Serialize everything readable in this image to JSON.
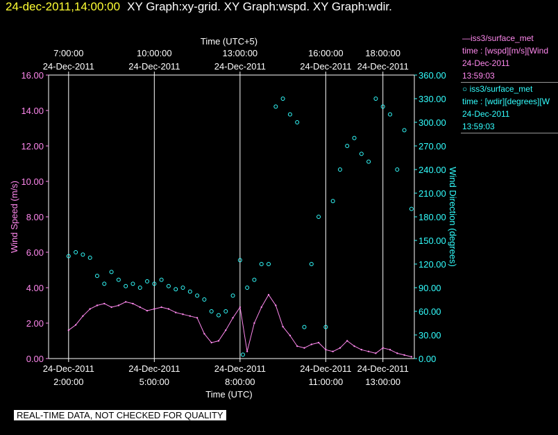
{
  "header": {
    "date": "24-dec-2011,14:00:00",
    "title": "XY Graph:xy-grid.  XY Graph:wspd.  XY Graph:wdir."
  },
  "legend": {
    "wspd": {
      "name": "—iss3/surface_met",
      "line2": "time : [wspd][m/s][Wind",
      "date": "24-Dec-2011",
      "time": "13:59:03"
    },
    "wdir": {
      "name": "○ iss3/surface_met",
      "line2": "time : [wdir][degrees][W",
      "date": "24-Dec-2011",
      "time": "13:59:03"
    }
  },
  "disclaimer": "REAL-TIME DATA, NOT CHECKED FOR QUALITY",
  "colors": {
    "wspd": "#ff88ee",
    "wdir": "#33ffff",
    "axis": "#ffffff"
  },
  "chart_data": {
    "type": "line",
    "xlabel_bottom": "Time (UTC)",
    "xlabel_top": "Time (UTC+5)",
    "ylabel_left": "Wind Speed (m/s)",
    "ylabel_right": "Wind Direction (degrees)",
    "x_range_utc_hours": [
      1.3,
      14.1
    ],
    "ylim_left": [
      0,
      16
    ],
    "ylim_right": [
      0,
      360
    ],
    "y_left_ticks": [
      "0.00",
      "2.00",
      "4.00",
      "6.00",
      "8.00",
      "10.00",
      "12.00",
      "14.00",
      "16.00"
    ],
    "y_right_ticks": [
      "0.00",
      "30.00",
      "60.00",
      "90.00",
      "120.00",
      "150.00",
      "180.00",
      "210.00",
      "240.00",
      "270.00",
      "300.00",
      "330.00",
      "360.00"
    ],
    "x_ticks_bottom": [
      {
        "utc_hour": 2,
        "date": "24-Dec-2011",
        "time": "2:00:00"
      },
      {
        "utc_hour": 5,
        "date": "24-Dec-2011",
        "time": "5:00:00"
      },
      {
        "utc_hour": 8,
        "date": "24-Dec-2011",
        "time": "8:00:00"
      },
      {
        "utc_hour": 11,
        "date": "24-Dec-2011",
        "time": "11:00:00"
      },
      {
        "utc_hour": 13,
        "date": "24-Dec-2011",
        "time": "13:00:00"
      }
    ],
    "x_ticks_top": [
      {
        "utc_hour": 2,
        "date": "24-Dec-2011",
        "time": "7:00:00"
      },
      {
        "utc_hour": 5,
        "date": "24-Dec-2011",
        "time": "10:00:00"
      },
      {
        "utc_hour": 8,
        "date": "24-Dec-2011",
        "time": "13:00:00"
      },
      {
        "utc_hour": 11,
        "date": "24-Dec-2011",
        "time": "16:00:00"
      },
      {
        "utc_hour": 13,
        "date": "24-Dec-2011",
        "time": "18:00:00"
      }
    ],
    "grid": true,
    "series": [
      {
        "name": "iss3/surface_met wspd",
        "style": "line",
        "x": [
          2.0,
          2.25,
          2.5,
          2.75,
          3.0,
          3.25,
          3.5,
          3.75,
          4.0,
          4.25,
          4.5,
          4.75,
          5.0,
          5.25,
          5.5,
          5.75,
          6.0,
          6.25,
          6.5,
          6.75,
          7.0,
          7.25,
          7.5,
          7.75,
          8.0,
          8.25,
          8.5,
          8.75,
          9.0,
          9.25,
          9.5,
          9.75,
          10.0,
          10.25,
          10.5,
          10.75,
          11.0,
          11.25,
          11.5,
          11.75,
          12.0,
          12.25,
          12.5,
          12.75,
          13.0,
          13.25,
          13.5,
          13.75,
          14.0
        ],
        "y": [
          1.6,
          1.9,
          2.4,
          2.8,
          3.0,
          3.1,
          2.9,
          3.0,
          3.2,
          3.1,
          2.9,
          2.7,
          2.8,
          2.9,
          2.8,
          2.6,
          2.5,
          2.4,
          2.3,
          1.4,
          0.9,
          1.0,
          1.6,
          2.3,
          2.9,
          0.4,
          2.0,
          2.9,
          3.6,
          3.0,
          1.8,
          1.3,
          0.7,
          0.6,
          0.8,
          0.9,
          0.5,
          0.4,
          0.6,
          1.0,
          0.7,
          0.5,
          0.4,
          0.3,
          0.6,
          0.5,
          0.3,
          0.2,
          0.1
        ]
      },
      {
        "name": "iss3/surface_met wdir",
        "style": "scatter",
        "x": [
          2.0,
          2.25,
          2.5,
          2.75,
          3.0,
          3.25,
          3.5,
          3.75,
          4.0,
          4.25,
          4.5,
          4.75,
          5.0,
          5.25,
          5.5,
          5.75,
          6.0,
          6.25,
          6.5,
          6.75,
          7.0,
          7.25,
          7.5,
          7.75,
          8.0,
          8.1,
          8.25,
          8.5,
          8.75,
          9.0,
          9.25,
          9.5,
          9.75,
          10.0,
          10.25,
          10.5,
          10.75,
          11.0,
          11.25,
          11.5,
          11.75,
          12.0,
          12.25,
          12.5,
          12.75,
          13.0,
          13.25,
          13.5,
          13.75,
          14.0
        ],
        "y": [
          130,
          135,
          132,
          128,
          105,
          95,
          110,
          100,
          92,
          95,
          90,
          98,
          95,
          100,
          92,
          88,
          90,
          85,
          80,
          75,
          60,
          55,
          60,
          80,
          125,
          5,
          90,
          100,
          120,
          120,
          320,
          330,
          310,
          300,
          40,
          120,
          180,
          40,
          200,
          240,
          270,
          280,
          260,
          250,
          330,
          320,
          310,
          240,
          290,
          190
        ]
      }
    ]
  }
}
